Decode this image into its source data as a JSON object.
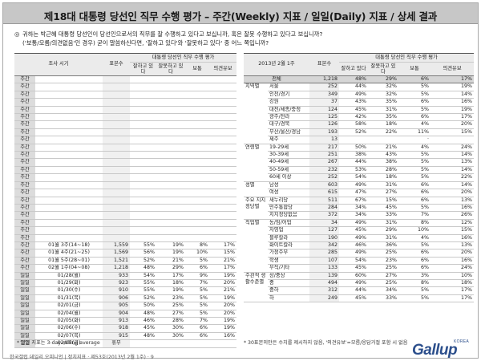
{
  "title": "제18대 대통령 당선인 직무 수행 평가 – 주간(Weekly) 지표 / 일일(Daily) 지표 / 상세 결과",
  "question": {
    "bullet": "◎",
    "line1": "귀하는 박근혜 대통령 당선인이 당선인으로서의 직무를 잘 수행하고 있다고 보십니까, 혹은 잘못 수행하고 있다고 보십니까?",
    "line2": "('보통/모름/의견없음'인 경우) 굳이 말씀하신다면, '잘하고 있다'와 '잘못하고 있다' 중 어느 쪽입니까?"
  },
  "left": {
    "header_group": "대통령 당선인 직무 수행 평가",
    "col_period": "조사 시기",
    "col_n": "표본수",
    "col_good": "잘하고 있다",
    "col_bad": "잘못하고 있다",
    "col_mid": "보통",
    "col_dk": "의견유보",
    "blank_label": "주간",
    "blank_rows": 22,
    "weekly": [
      {
        "label": "주간",
        "period": "01월 3주(14~18)",
        "n": "1,559",
        "good": "55%",
        "bad": "19%",
        "mid": "8%",
        "dk": "17%"
      },
      {
        "label": "주간",
        "period": "01월 4주(21~25)",
        "n": "1,569",
        "good": "56%",
        "bad": "19%",
        "mid": "10%",
        "dk": "15%"
      },
      {
        "label": "주간",
        "period": "01월 5주(28~01)",
        "n": "1,521",
        "good": "52%",
        "bad": "21%",
        "mid": "5%",
        "dk": "21%"
      },
      {
        "label": "주간",
        "period": "02월 1주(04~08)",
        "n": "1,218",
        "good": "48%",
        "bad": "29%",
        "mid": "6%",
        "dk": "17%"
      }
    ],
    "daily": [
      {
        "label": "일일",
        "date": "01/28(월)",
        "n": "933",
        "good": "54%",
        "bad": "17%",
        "mid": "9%",
        "dk": "19%"
      },
      {
        "label": "일일",
        "date": "01/29(화)",
        "n": "923",
        "good": "55%",
        "bad": "18%",
        "mid": "7%",
        "dk": "20%"
      },
      {
        "label": "일일",
        "date": "01/30(수)",
        "n": "910",
        "good": "55%",
        "bad": "19%",
        "mid": "5%",
        "dk": "21%"
      },
      {
        "label": "일일",
        "date": "01/31(목)",
        "n": "906",
        "good": "52%",
        "bad": "23%",
        "mid": "5%",
        "dk": "19%"
      },
      {
        "label": "일일",
        "date": "02/01(금)",
        "n": "905",
        "good": "50%",
        "bad": "25%",
        "mid": "5%",
        "dk": "20%"
      },
      {
        "label": "일일",
        "date": "02/04(월)",
        "n": "904",
        "good": "48%",
        "bad": "27%",
        "mid": "5%",
        "dk": "20%"
      },
      {
        "label": "일일",
        "date": "02/05(화)",
        "n": "913",
        "good": "46%",
        "bad": "28%",
        "mid": "7%",
        "dk": "19%"
      },
      {
        "label": "일일",
        "date": "02/06(수)",
        "n": "918",
        "good": "45%",
        "bad": "30%",
        "mid": "6%",
        "dk": "19%"
      },
      {
        "label": "일일",
        "date": "02/07(목)",
        "n": "915",
        "good": "48%",
        "bad": "30%",
        "mid": "6%",
        "dk": "16%"
      },
      {
        "label": "일일",
        "date": "02/08(금)",
        "n": "",
        "good": "",
        "bad": "",
        "mid": "",
        "dk": ""
      }
    ],
    "holiday_label": "휴무",
    "note": "* 일일 지표는 3-day-rolling average"
  },
  "right": {
    "header_group": "대통령 당선인 직무 수행 평가",
    "period_label": "2013년 2월 1주",
    "col_n": "표본수",
    "col_good": "잘하고 있다",
    "col_bad": "잘못하고 있다",
    "col_mid": "보통",
    "col_dk": "의견유보",
    "total": {
      "label": "전체",
      "n": "1,218",
      "good": "48%",
      "bad": "29%",
      "mid": "6%",
      "dk": "17%"
    },
    "groups": [
      {
        "name": "지역별",
        "rows": [
          {
            "sub": "서울",
            "n": "252",
            "good": "44%",
            "bad": "32%",
            "mid": "5%",
            "dk": "19%"
          },
          {
            "sub": "인천/경기",
            "n": "349",
            "good": "49%",
            "bad": "32%",
            "mid": "5%",
            "dk": "14%"
          },
          {
            "sub": "강원",
            "n": "37",
            "good": "43%",
            "bad": "35%",
            "mid": "6%",
            "dk": "16%"
          },
          {
            "sub": "대전/세종/충청",
            "n": "124",
            "good": "45%",
            "bad": "31%",
            "mid": "5%",
            "dk": "19%"
          },
          {
            "sub": "광주/전라",
            "n": "125",
            "good": "42%",
            "bad": "35%",
            "mid": "6%",
            "dk": "17%"
          },
          {
            "sub": "대구/경북",
            "n": "126",
            "good": "58%",
            "bad": "18%",
            "mid": "4%",
            "dk": "20%"
          },
          {
            "sub": "부산/울산/경남",
            "n": "193",
            "good": "52%",
            "bad": "22%",
            "mid": "11%",
            "dk": "15%"
          },
          {
            "sub": "제주",
            "n": "13",
            "good": "",
            "bad": "",
            "mid": "·",
            "dk": ""
          }
        ]
      },
      {
        "name": "연령별",
        "rows": [
          {
            "sub": "19-29세",
            "n": "217",
            "good": "50%",
            "bad": "21%",
            "mid": "4%",
            "dk": "24%"
          },
          {
            "sub": "30-39세",
            "n": "251",
            "good": "38%",
            "bad": "43%",
            "mid": "5%",
            "dk": "14%"
          },
          {
            "sub": "40-49세",
            "n": "267",
            "good": "44%",
            "bad": "38%",
            "mid": "5%",
            "dk": "13%"
          },
          {
            "sub": "50-59세",
            "n": "232",
            "good": "53%",
            "bad": "28%",
            "mid": "5%",
            "dk": "14%"
          },
          {
            "sub": "60세 이상",
            "n": "252",
            "good": "54%",
            "bad": "18%",
            "mid": "5%",
            "dk": "22%"
          }
        ]
      },
      {
        "name": "성별",
        "rows": [
          {
            "sub": "남성",
            "n": "603",
            "good": "49%",
            "bad": "31%",
            "mid": "6%",
            "dk": "14%"
          },
          {
            "sub": "여성",
            "n": "615",
            "good": "47%",
            "bad": "27%",
            "mid": "6%",
            "dk": "20%"
          }
        ]
      },
      {
        "name": "주요 지지 정당별",
        "rows": [
          {
            "sub": "새누리당",
            "n": "511",
            "good": "67%",
            "bad": "15%",
            "mid": "6%",
            "dk": "13%"
          },
          {
            "sub": "민주통합당",
            "n": "284",
            "good": "34%",
            "bad": "45%",
            "mid": "5%",
            "dk": "16%"
          },
          {
            "sub": "지지정당없음",
            "n": "372",
            "good": "34%",
            "bad": "33%",
            "mid": "7%",
            "dk": "26%"
          }
        ]
      },
      {
        "name": "직업별",
        "rows": [
          {
            "sub": "농/임/어업",
            "n": "34",
            "good": "49%",
            "bad": "31%",
            "mid": "8%",
            "dk": "12%"
          },
          {
            "sub": "자영업",
            "n": "127",
            "good": "45%",
            "bad": "29%",
            "mid": "10%",
            "dk": "15%"
          },
          {
            "sub": "블루칼라",
            "n": "190",
            "good": "49%",
            "bad": "31%",
            "mid": "4%",
            "dk": "16%"
          },
          {
            "sub": "화이트칼라",
            "n": "342",
            "good": "46%",
            "bad": "36%",
            "mid": "5%",
            "dk": "13%"
          },
          {
            "sub": "가정주부",
            "n": "285",
            "good": "49%",
            "bad": "25%",
            "mid": "6%",
            "dk": "20%"
          },
          {
            "sub": "학생",
            "n": "107",
            "good": "54%",
            "bad": "23%",
            "mid": "6%",
            "dk": "16%"
          },
          {
            "sub": "무직/기타",
            "n": "133",
            "good": "45%",
            "bad": "25%",
            "mid": "6%",
            "dk": "24%"
          }
        ]
      },
      {
        "name": "주관적 생활수준별",
        "rows": [
          {
            "sub": "상/중상",
            "n": "139",
            "good": "60%",
            "bad": "27%",
            "mid": "3%",
            "dk": "10%"
          },
          {
            "sub": "중",
            "n": "494",
            "good": "49%",
            "bad": "25%",
            "mid": "8%",
            "dk": "18%"
          },
          {
            "sub": "중하",
            "n": "312",
            "good": "44%",
            "bad": "34%",
            "mid": "5%",
            "dk": "17%"
          },
          {
            "sub": "하",
            "n": "249",
            "good": "45%",
            "bad": "33%",
            "mid": "5%",
            "dk": "17%"
          }
        ]
      }
    ],
    "note": "* 30표본미만은 수치를 제시하지 않음, '의견유보'=모름/응답거절 포함 시 없음"
  },
  "footer": "한국갤럽 데일리 오피니언 | 정치지표 · 제53호(2013년 2월 1주) · 9",
  "logo": {
    "main": "Gallup",
    "korea": "KOREA",
    "color": "#2c4f8c"
  }
}
